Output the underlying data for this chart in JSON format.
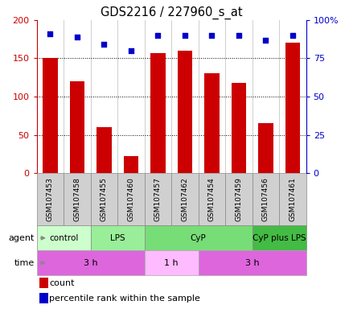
{
  "title": "GDS2216 / 227960_s_at",
  "samples": [
    "GSM107453",
    "GSM107458",
    "GSM107455",
    "GSM107460",
    "GSM107457",
    "GSM107462",
    "GSM107454",
    "GSM107459",
    "GSM107456",
    "GSM107461"
  ],
  "counts": [
    150,
    120,
    60,
    22,
    157,
    160,
    130,
    118,
    65,
    170
  ],
  "percentile": [
    91,
    89,
    84,
    80,
    90,
    90,
    90,
    90,
    87,
    90
  ],
  "ylim_left": [
    0,
    200
  ],
  "ylim_right": [
    0,
    100
  ],
  "yticks_left": [
    0,
    50,
    100,
    150,
    200
  ],
  "yticks_right": [
    0,
    25,
    50,
    75,
    100
  ],
  "ytick_labels_right": [
    "0",
    "25",
    "50",
    "75",
    "100%"
  ],
  "bar_color": "#cc0000",
  "dot_color": "#0000cc",
  "sample_box_color": "#d0d0d0",
  "agent_groups": [
    {
      "label": "control",
      "start": 0,
      "end": 2,
      "color": "#ccffcc"
    },
    {
      "label": "LPS",
      "start": 2,
      "end": 4,
      "color": "#99ee99"
    },
    {
      "label": "CyP",
      "start": 4,
      "end": 8,
      "color": "#77dd77"
    },
    {
      "label": "CyP plus LPS",
      "start": 8,
      "end": 10,
      "color": "#44bb44"
    }
  ],
  "time_groups": [
    {
      "label": "3 h",
      "start": 0,
      "end": 4,
      "color": "#dd66dd"
    },
    {
      "label": "1 h",
      "start": 4,
      "end": 6,
      "color": "#ffbbff"
    },
    {
      "label": "3 h",
      "start": 6,
      "end": 10,
      "color": "#dd66dd"
    }
  ],
  "legend_count_color": "#cc0000",
  "legend_pct_color": "#0000cc",
  "background_color": "#ffffff"
}
